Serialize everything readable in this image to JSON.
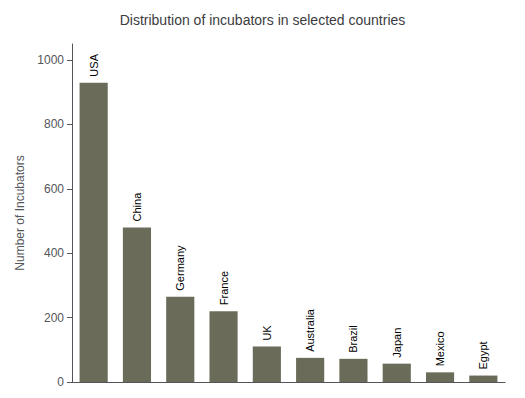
{
  "chart_data": {
    "type": "bar",
    "title": "Distribution of incubators in selected countries",
    "categories": [
      "USA",
      "China",
      "Germany",
      "France",
      "UK",
      "Australia",
      "Brazil",
      "Japan",
      "Mexico",
      "Egypt"
    ],
    "values": [
      930,
      480,
      265,
      220,
      110,
      75,
      72,
      57,
      30,
      20
    ],
    "color": "#6b6b5a",
    "ylabel": "Number of Incubators",
    "ylim": [
      0,
      1050
    ],
    "yticks": [
      0,
      200,
      400,
      600,
      800,
      1000
    ],
    "grid": false,
    "tick_labels": "y"
  }
}
